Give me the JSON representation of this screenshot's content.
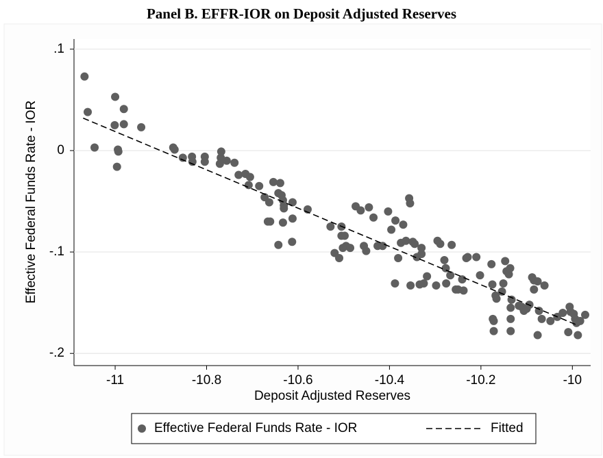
{
  "chart_data": {
    "type": "scatter",
    "title": "Panel B. EFFR-IOR on Deposit Adjusted Reserves",
    "xlabel": "Deposit Adjusted Reserves",
    "ylabel": "Effective Federal Funds Rate - IOR",
    "xlim": [
      -11.09,
      -9.96
    ],
    "ylim": [
      -0.212,
      0.11
    ],
    "xticks": [
      -11,
      -10.8,
      -10.6,
      -10.4,
      -10.2,
      -10
    ],
    "yticks": [
      {
        "value": 0.1,
        "label": ".1"
      },
      0,
      {
        "value": -0.1,
        "label": "-.1"
      },
      {
        "value": -0.2,
        "label": "-.2"
      }
    ],
    "grid": true,
    "legend": "bottom",
    "series": [
      {
        "name": "Effective Federal Funds Rate - IOR",
        "type": "scatter",
        "color": "#5f5f5f",
        "x": [
          -11.067,
          -11.06,
          -11.045,
          -11.0,
          -11.001,
          -10.981,
          -10.981,
          -10.994,
          -10.993,
          -10.996,
          -10.943,
          -10.873,
          -10.87,
          -10.852,
          -10.832,
          -10.831,
          -10.804,
          -10.804,
          -10.769,
          -10.768,
          -10.771,
          -10.756,
          -10.739,
          -10.73,
          -10.715,
          -10.708,
          -10.705,
          -10.685,
          -10.673,
          -10.663,
          -10.666,
          -10.661,
          -10.654,
          -10.643,
          -10.639,
          -10.636,
          -10.633,
          -10.631,
          -10.631,
          -10.643,
          -10.633,
          -10.612,
          -10.612,
          -10.613,
          -10.579,
          -10.529,
          -10.52,
          -10.51,
          -10.502,
          -10.505,
          -10.505,
          -10.495,
          -10.498,
          -10.486,
          -10.474,
          -10.463,
          -10.456,
          -10.451,
          -10.445,
          -10.435,
          -10.426,
          -10.415,
          -10.403,
          -10.396,
          -10.387,
          -10.388,
          -10.381,
          -10.375,
          -10.37,
          -10.364,
          -10.357,
          -10.355,
          -10.354,
          -10.349,
          -10.345,
          -10.34,
          -10.334,
          -10.33,
          -10.33,
          -10.325,
          -10.318,
          -10.298,
          -10.295,
          -10.289,
          -10.28,
          -10.277,
          -10.276,
          -10.267,
          -10.264,
          -10.255,
          -10.25,
          -10.241,
          -10.238,
          -10.232,
          -10.229,
          -10.21,
          -10.202,
          -10.177,
          -10.175,
          -10.174,
          -10.172,
          -10.172,
          -10.168,
          -10.166,
          -10.154,
          -10.151,
          -10.147,
          -10.144,
          -10.139,
          -10.136,
          -10.135,
          -10.135,
          -10.135,
          -10.133,
          -10.117,
          -10.111,
          -10.106,
          -10.1,
          -10.094,
          -10.088,
          -10.084,
          -10.084,
          -10.076,
          -10.076,
          -10.073,
          -10.067,
          -10.061,
          -10.048,
          -10.033,
          -10.021,
          -10.009,
          -10.006,
          -10.004,
          -9.997,
          -9.994,
          -9.991,
          -9.988,
          -9.983,
          -9.972
        ],
        "values": [
          0.073,
          0.038,
          0.003,
          0.053,
          0.025,
          0.041,
          0.026,
          0.001,
          -0.001,
          -0.016,
          0.023,
          0.003,
          0.001,
          -0.007,
          -0.006,
          -0.011,
          -0.006,
          -0.011,
          -0.007,
          -0.001,
          -0.013,
          -0.01,
          -0.012,
          -0.024,
          -0.023,
          -0.034,
          -0.026,
          -0.035,
          -0.046,
          -0.051,
          -0.07,
          -0.07,
          -0.031,
          -0.042,
          -0.032,
          -0.044,
          -0.049,
          -0.054,
          -0.057,
          -0.093,
          -0.071,
          -0.051,
          -0.067,
          -0.09,
          -0.058,
          -0.075,
          -0.101,
          -0.106,
          -0.096,
          -0.084,
          -0.075,
          -0.094,
          -0.084,
          -0.096,
          -0.055,
          -0.059,
          -0.094,
          -0.099,
          -0.056,
          -0.066,
          -0.094,
          -0.094,
          -0.06,
          -0.078,
          -0.069,
          -0.131,
          -0.106,
          -0.091,
          -0.073,
          -0.089,
          -0.047,
          -0.052,
          -0.133,
          -0.09,
          -0.092,
          -0.105,
          -0.132,
          -0.102,
          -0.096,
          -0.131,
          -0.124,
          -0.133,
          -0.089,
          -0.092,
          -0.108,
          -0.116,
          -0.131,
          -0.123,
          -0.093,
          -0.137,
          -0.137,
          -0.127,
          -0.138,
          -0.106,
          -0.105,
          -0.105,
          -0.123,
          -0.112,
          -0.132,
          -0.166,
          -0.178,
          -0.168,
          -0.143,
          -0.146,
          -0.139,
          -0.131,
          -0.109,
          -0.119,
          -0.122,
          -0.116,
          -0.166,
          -0.178,
          -0.155,
          -0.147,
          -0.153,
          -0.154,
          -0.158,
          -0.156,
          -0.152,
          -0.125,
          -0.128,
          -0.137,
          -0.129,
          -0.182,
          -0.158,
          -0.166,
          -0.133,
          -0.168,
          -0.164,
          -0.16,
          -0.179,
          -0.154,
          -0.159,
          -0.161,
          -0.166,
          -0.17,
          -0.182,
          -0.168,
          -0.162
        ]
      },
      {
        "name": "Fitted",
        "type": "line",
        "color": "#000000",
        "dashed": true,
        "x": [
          -11.07,
          -9.99
        ],
        "values": [
          0.032,
          -0.172
        ]
      }
    ]
  }
}
